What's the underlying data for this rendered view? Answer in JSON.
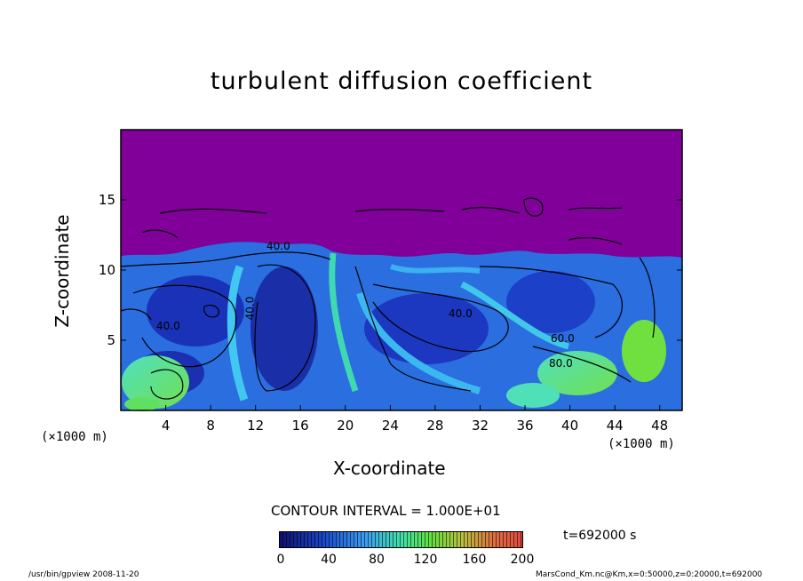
{
  "chart_data": {
    "type": "heatmap",
    "title": "turbulent diffusion coefficient",
    "xlabel": "X-coordinate",
    "ylabel": "Z-coordinate",
    "x_unit": "(×1000 m)",
    "y_unit": "(×1000 m)",
    "xlim": [
      0,
      50
    ],
    "ylim": [
      0,
      20
    ],
    "x_ticks": [
      "4",
      "8",
      "12",
      "16",
      "20",
      "24",
      "28",
      "32",
      "36",
      "40",
      "44",
      "48"
    ],
    "y_ticks": [
      "5",
      "10",
      "15"
    ],
    "contour_interval": "CONTOUR INTERVAL = 1.000E+01",
    "contour_labels": [
      "40.0",
      "40.0",
      "40.0",
      "40.0",
      "60.0",
      "80.0"
    ],
    "colorbar": {
      "min": 0,
      "max": 200,
      "ticks": [
        "0",
        "40",
        "80",
        "120",
        "160",
        "200"
      ],
      "colors": [
        "#10106a",
        "#1848c8",
        "#3c9cf4",
        "#40e0a8",
        "#60e040",
        "#b8c040",
        "#e07040",
        "#e04840"
      ]
    },
    "background_color": "#800099",
    "time_label": "t=692000 s"
  },
  "footer": {
    "left": "/usr/bin/gpview  2008-11-20",
    "right": "MarsCond_Km.nc@Km,x=0:50000,z=0:20000,t=692000"
  }
}
